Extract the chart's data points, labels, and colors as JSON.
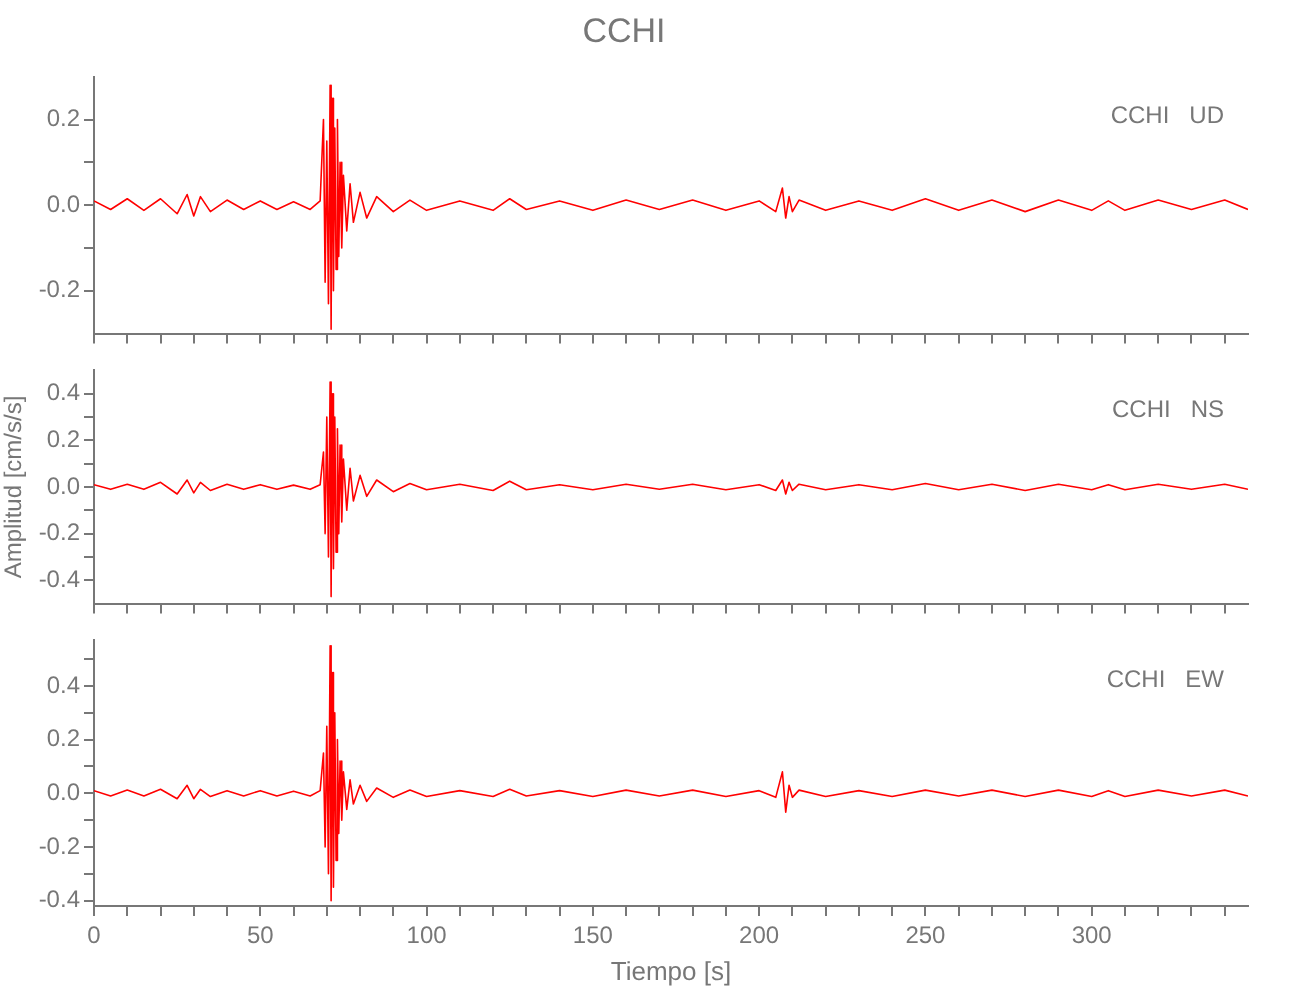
{
  "chart_data": [
    {
      "type": "line",
      "title": "CCHI",
      "annotations": [
        "CCHI   UD"
      ],
      "tick_labels": "y",
      "grid": false,
      "legend": false,
      "marker": "none",
      "line_style": "solid",
      "color": "#ff0000",
      "x": [
        0,
        5,
        10,
        15,
        20,
        25,
        28,
        30,
        32,
        35,
        40,
        45,
        50,
        55,
        60,
        65,
        68,
        69,
        69.5,
        70,
        70.5,
        71,
        71.3,
        71.6,
        72,
        72.4,
        72.8,
        73.2,
        73.6,
        74,
        74.5,
        75,
        76,
        77,
        78,
        80,
        82,
        85,
        90,
        95,
        100,
        110,
        120,
        125,
        130,
        140,
        150,
        160,
        170,
        180,
        190,
        200,
        205,
        207,
        208,
        209,
        210,
        212,
        220,
        230,
        240,
        250,
        260,
        270,
        280,
        290,
        300,
        305,
        310,
        320,
        330,
        340,
        347
      ],
      "values": [
        0.01,
        -0.01,
        0.015,
        -0.012,
        0.015,
        -0.02,
        0.025,
        -0.025,
        0.02,
        -0.015,
        0.012,
        -0.01,
        0.01,
        -0.01,
        0.008,
        -0.01,
        0.01,
        0.2,
        -0.18,
        0.15,
        -0.23,
        0.28,
        -0.29,
        0.25,
        -0.2,
        0.18,
        -0.15,
        0.2,
        -0.12,
        0.1,
        -0.1,
        0.07,
        -0.06,
        0.05,
        -0.04,
        0.03,
        -0.03,
        0.02,
        -0.015,
        0.012,
        -0.012,
        0.01,
        -0.012,
        0.015,
        -0.01,
        0.01,
        -0.012,
        0.012,
        -0.01,
        0.012,
        -0.012,
        0.01,
        -0.015,
        0.04,
        -0.03,
        0.02,
        -0.015,
        0.012,
        -0.012,
        0.01,
        -0.012,
        0.015,
        -0.012,
        0.012,
        -0.015,
        0.012,
        -0.012,
        0.01,
        -0.012,
        0.012,
        -0.01,
        0.012,
        -0.01
      ],
      "xlim": [
        0,
        347
      ],
      "xticks": [
        0,
        {
          "value": 10,
          "label": null
        },
        {
          "value": 20,
          "label": null
        },
        {
          "value": 30,
          "label": null
        },
        {
          "value": 40,
          "label": null
        },
        50,
        {
          "value": 60,
          "label": null
        },
        {
          "value": 70,
          "label": null
        },
        {
          "value": 80,
          "label": null
        },
        {
          "value": 90,
          "label": null
        },
        100,
        {
          "value": 110,
          "label": null
        },
        {
          "value": 120,
          "label": null
        },
        {
          "value": 130,
          "label": null
        },
        {
          "value": 140,
          "label": null
        },
        150,
        {
          "value": 160,
          "label": null
        },
        {
          "value": 170,
          "label": null
        },
        {
          "value": 180,
          "label": null
        },
        {
          "value": 190,
          "label": null
        },
        200,
        {
          "value": 210,
          "label": null
        },
        {
          "value": 220,
          "label": null
        },
        {
          "value": 230,
          "label": null
        },
        {
          "value": 240,
          "label": null
        },
        250,
        {
          "value": 260,
          "label": null
        },
        {
          "value": 270,
          "label": null
        },
        {
          "value": 280,
          "label": null
        },
        {
          "value": 290,
          "label": null
        },
        300,
        {
          "value": 310,
          "label": null
        },
        {
          "value": 320,
          "label": null
        },
        {
          "value": 330,
          "label": null
        },
        {
          "value": 340,
          "label": null
        }
      ],
      "ylim": [
        -0.3,
        0.3
      ],
      "yticks": [
        -0.2,
        {
          "value": -0.1,
          "label": null
        },
        {
          "value": 0,
          "label": "0.0"
        },
        {
          "value": 0.1,
          "label": null
        },
        0.2
      ]
    },
    {
      "type": "line",
      "ylabel": "Amplitud [cm/s/s]",
      "annotations": [
        "CCHI   NS"
      ],
      "tick_labels": "y",
      "grid": false,
      "legend": false,
      "marker": "none",
      "line_style": "solid",
      "color": "#ff0000",
      "x": [
        0,
        5,
        10,
        15,
        20,
        25,
        28,
        30,
        32,
        35,
        40,
        45,
        50,
        55,
        60,
        65,
        68,
        69,
        69.5,
        70,
        70.5,
        71,
        71.3,
        71.6,
        72,
        72.4,
        72.8,
        73.2,
        73.6,
        74,
        74.5,
        75,
        76,
        77,
        78,
        80,
        82,
        85,
        90,
        95,
        100,
        110,
        120,
        125,
        130,
        140,
        150,
        160,
        170,
        180,
        190,
        200,
        205,
        207,
        208,
        209,
        210,
        212,
        220,
        230,
        240,
        250,
        260,
        270,
        280,
        290,
        300,
        305,
        310,
        320,
        330,
        340,
        347
      ],
      "values": [
        0.01,
        -0.01,
        0.012,
        -0.01,
        0.02,
        -0.03,
        0.03,
        -0.025,
        0.02,
        -0.015,
        0.012,
        -0.01,
        0.01,
        -0.01,
        0.008,
        -0.01,
        0.01,
        0.15,
        -0.2,
        0.3,
        -0.3,
        0.45,
        -0.47,
        0.4,
        -0.35,
        0.3,
        -0.28,
        0.25,
        -0.2,
        0.18,
        -0.15,
        0.12,
        -0.1,
        0.08,
        -0.06,
        0.05,
        -0.04,
        0.03,
        -0.02,
        0.015,
        -0.012,
        0.012,
        -0.015,
        0.025,
        -0.012,
        0.01,
        -0.012,
        0.012,
        -0.01,
        0.012,
        -0.012,
        0.01,
        -0.015,
        0.03,
        -0.03,
        0.02,
        -0.015,
        0.012,
        -0.012,
        0.01,
        -0.012,
        0.015,
        -0.012,
        0.012,
        -0.015,
        0.012,
        -0.012,
        0.01,
        -0.012,
        0.012,
        -0.01,
        0.012,
        -0.01
      ],
      "xlim": [
        0,
        347
      ],
      "xticks": [
        0,
        {
          "value": 10,
          "label": null
        },
        {
          "value": 20,
          "label": null
        },
        {
          "value": 30,
          "label": null
        },
        {
          "value": 40,
          "label": null
        },
        50,
        {
          "value": 60,
          "label": null
        },
        {
          "value": 70,
          "label": null
        },
        {
          "value": 80,
          "label": null
        },
        {
          "value": 90,
          "label": null
        },
        100,
        {
          "value": 110,
          "label": null
        },
        {
          "value": 120,
          "label": null
        },
        {
          "value": 130,
          "label": null
        },
        {
          "value": 140,
          "label": null
        },
        150,
        {
          "value": 160,
          "label": null
        },
        {
          "value": 170,
          "label": null
        },
        {
          "value": 180,
          "label": null
        },
        {
          "value": 190,
          "label": null
        },
        200,
        {
          "value": 210,
          "label": null
        },
        {
          "value": 220,
          "label": null
        },
        {
          "value": 230,
          "label": null
        },
        {
          "value": 240,
          "label": null
        },
        250,
        {
          "value": 260,
          "label": null
        },
        {
          "value": 270,
          "label": null
        },
        {
          "value": 280,
          "label": null
        },
        {
          "value": 290,
          "label": null
        },
        300,
        {
          "value": 310,
          "label": null
        },
        {
          "value": 320,
          "label": null
        },
        {
          "value": 330,
          "label": null
        },
        {
          "value": 340,
          "label": null
        }
      ],
      "ylim": [
        -0.5,
        0.5
      ],
      "yticks": [
        -0.4,
        {
          "value": -0.3,
          "label": null
        },
        -0.2,
        {
          "value": -0.1,
          "label": null
        },
        {
          "value": 0,
          "label": "0.0"
        },
        {
          "value": 0.1,
          "label": null
        },
        0.2,
        {
          "value": 0.3,
          "label": null
        },
        0.4
      ]
    },
    {
      "type": "line",
      "xlabel": "Tiempo [s]",
      "annotations": [
        "CCHI   EW"
      ],
      "grid": false,
      "legend": false,
      "marker": "none",
      "line_style": "solid",
      "color": "#ff0000",
      "x": [
        0,
        5,
        10,
        15,
        20,
        25,
        28,
        30,
        32,
        35,
        40,
        45,
        50,
        55,
        60,
        65,
        68,
        69,
        69.5,
        70,
        70.5,
        71,
        71.3,
        71.6,
        72,
        72.4,
        72.8,
        73.2,
        73.6,
        74,
        74.5,
        75,
        76,
        77,
        78,
        80,
        82,
        85,
        90,
        95,
        100,
        110,
        120,
        125,
        130,
        140,
        150,
        160,
        170,
        180,
        190,
        200,
        205,
        207,
        208,
        209,
        210,
        212,
        220,
        230,
        240,
        250,
        260,
        270,
        280,
        290,
        300,
        305,
        310,
        320,
        330,
        340,
        347
      ],
      "values": [
        0.01,
        -0.01,
        0.012,
        -0.01,
        0.015,
        -0.02,
        0.03,
        -0.02,
        0.015,
        -0.012,
        0.01,
        -0.01,
        0.01,
        -0.01,
        0.008,
        -0.01,
        0.01,
        0.15,
        -0.2,
        0.25,
        -0.3,
        0.55,
        -0.4,
        0.45,
        -0.35,
        0.3,
        -0.25,
        0.2,
        -0.15,
        0.12,
        -0.1,
        0.08,
        -0.06,
        0.05,
        -0.04,
        0.03,
        -0.03,
        0.02,
        -0.015,
        0.012,
        -0.012,
        0.01,
        -0.012,
        0.015,
        -0.01,
        0.01,
        -0.012,
        0.012,
        -0.01,
        0.012,
        -0.012,
        0.01,
        -0.015,
        0.08,
        -0.07,
        0.03,
        -0.015,
        0.012,
        -0.012,
        0.01,
        -0.012,
        0.012,
        -0.01,
        0.012,
        -0.012,
        0.012,
        -0.012,
        0.01,
        -0.012,
        0.012,
        -0.01,
        0.012,
        -0.01
      ],
      "xlim": [
        0,
        347
      ],
      "xticks": [
        0,
        {
          "value": 10,
          "label": null
        },
        {
          "value": 20,
          "label": null
        },
        {
          "value": 30,
          "label": null
        },
        {
          "value": 40,
          "label": null
        },
        50,
        {
          "value": 60,
          "label": null
        },
        {
          "value": 70,
          "label": null
        },
        {
          "value": 80,
          "label": null
        },
        {
          "value": 90,
          "label": null
        },
        100,
        {
          "value": 110,
          "label": null
        },
        {
          "value": 120,
          "label": null
        },
        {
          "value": 130,
          "label": null
        },
        {
          "value": 140,
          "label": null
        },
        150,
        {
          "value": 160,
          "label": null
        },
        {
          "value": 170,
          "label": null
        },
        {
          "value": 180,
          "label": null
        },
        {
          "value": 190,
          "label": null
        },
        200,
        {
          "value": 210,
          "label": null
        },
        {
          "value": 220,
          "label": null
        },
        {
          "value": 230,
          "label": null
        },
        {
          "value": 240,
          "label": null
        },
        250,
        {
          "value": 260,
          "label": null
        },
        {
          "value": 270,
          "label": null
        },
        {
          "value": 280,
          "label": null
        },
        {
          "value": 290,
          "label": null
        },
        300,
        {
          "value": 310,
          "label": null
        },
        {
          "value": 320,
          "label": null
        },
        {
          "value": 330,
          "label": null
        },
        {
          "value": 340,
          "label": null
        }
      ],
      "ylim": [
        -0.42,
        0.57
      ],
      "yticks": [
        -0.4,
        {
          "value": -0.3,
          "label": null
        },
        -0.2,
        {
          "value": -0.1,
          "label": null
        },
        {
          "value": 0,
          "label": "0.0"
        },
        {
          "value": 0.1,
          "label": null
        },
        0.2,
        {
          "value": 0.3,
          "label": null
        },
        0.4,
        {
          "value": 0.5,
          "label": null
        }
      ]
    }
  ]
}
